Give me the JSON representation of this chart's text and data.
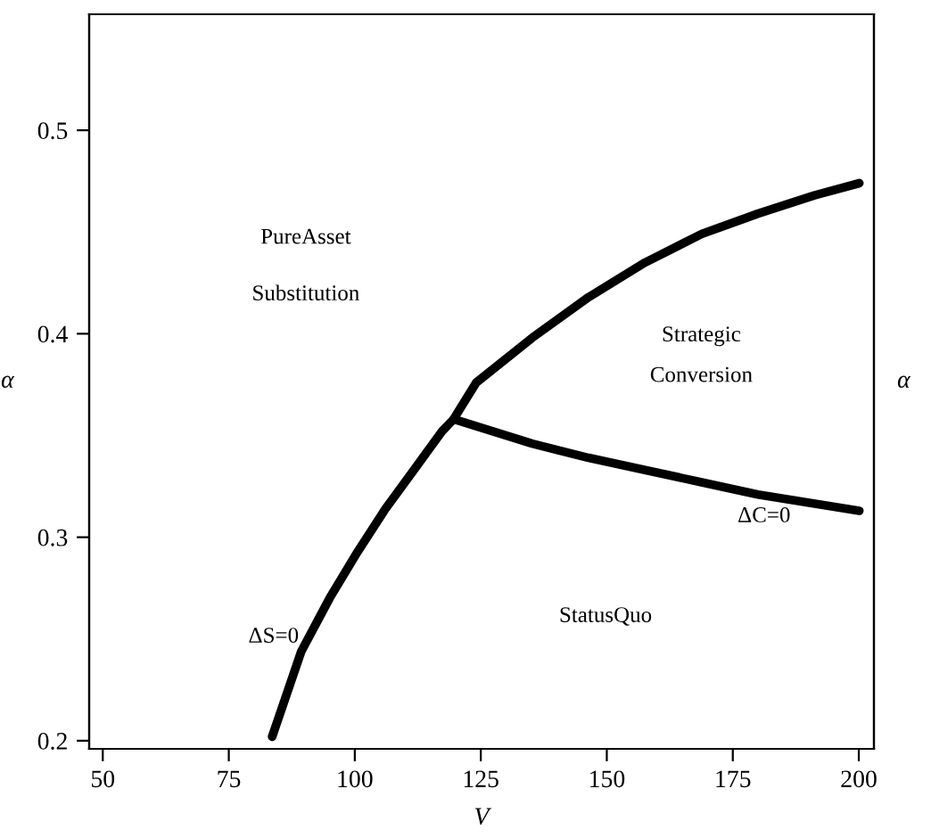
{
  "chart_data": {
    "type": "line",
    "xlabel": "V",
    "ylabel": "α",
    "y2label": "α",
    "xlim": [
      47.3,
      203
    ],
    "ylim": [
      0.196,
      0.557
    ],
    "xticks": [
      50,
      75,
      100,
      125,
      150,
      175,
      200
    ],
    "yticks": [
      0.2,
      0.3,
      0.4,
      0.5
    ],
    "grid": false,
    "legend": false,
    "marker": "none",
    "line_style": "solid",
    "series": [
      {
        "color": "#000000",
        "x": [
          83.6,
          89.4,
          95.0,
          100.6,
          106.1,
          111.7,
          117.3,
          119.6,
          124.1,
          135.2,
          146.4,
          157.6,
          168.8,
          180.0,
          191.2,
          200.1
        ],
        "values": [
          0.202,
          0.244,
          0.27,
          0.293,
          0.314,
          0.333,
          0.352,
          0.358,
          0.376,
          0.398,
          0.418,
          0.435,
          0.449,
          0.459,
          0.468,
          0.474
        ]
      },
      {
        "color": "#000000",
        "x": [
          119.6,
          135.2,
          146.4,
          157.6,
          168.8,
          180.0,
          200.1
        ],
        "values": [
          0.358,
          0.346,
          0.339,
          0.333,
          0.327,
          0.321,
          0.313
        ]
      }
    ],
    "annotations": [
      "PureAsset",
      "Substitution",
      "Strategic",
      "Conversion",
      "StatusQuo",
      "ΔS=0",
      "ΔC=0"
    ]
  }
}
